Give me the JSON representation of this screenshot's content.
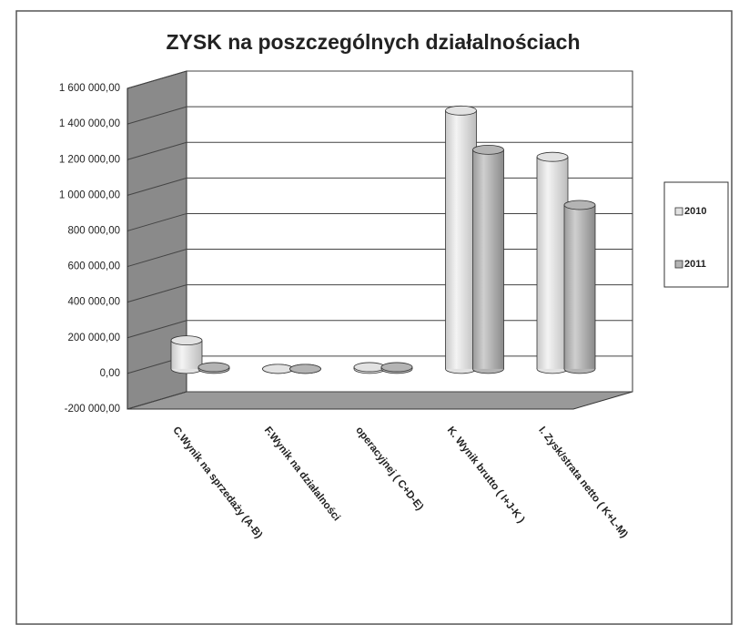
{
  "chart_data": {
    "type": "bar3d",
    "title": "ZYSK na poszczególnych działalnościach",
    "categories": [
      "C.Wynik na sprzedaży (A-B)",
      "F.Wynik na działalności",
      "operacyjnej ( C+D-E)",
      "K. Wynik brutto ( I+J-K )",
      "I. Zysk/strata netto ( K+L-M)"
    ],
    "series": [
      {
        "name": "2010",
        "color": "#e2e2e2",
        "values": [
          160000,
          0,
          10000,
          1450000,
          1190000
        ]
      },
      {
        "name": "2011",
        "color": "#b4b4b4",
        "values": [
          10000,
          0,
          10000,
          1230000,
          920000
        ]
      }
    ],
    "ylim": [
      -200000,
      1600000
    ],
    "yticks": [
      {
        "value": -200000,
        "label": "-200 000,00"
      },
      {
        "value": 0,
        "label": "0,00"
      },
      {
        "value": 200000,
        "label": "200 000,00"
      },
      {
        "value": 400000,
        "label": "400 000,00"
      },
      {
        "value": 600000,
        "label": "600 000,00"
      },
      {
        "value": 800000,
        "label": "800 000,00"
      },
      {
        "value": 1000000,
        "label": "1 000 000,00"
      },
      {
        "value": 1200000,
        "label": "1 200 000,00"
      },
      {
        "value": 1400000,
        "label": "1 400 000,00"
      },
      {
        "value": 1600000,
        "label": "1 600 000,00"
      }
    ],
    "grid": true,
    "legend": "right"
  }
}
